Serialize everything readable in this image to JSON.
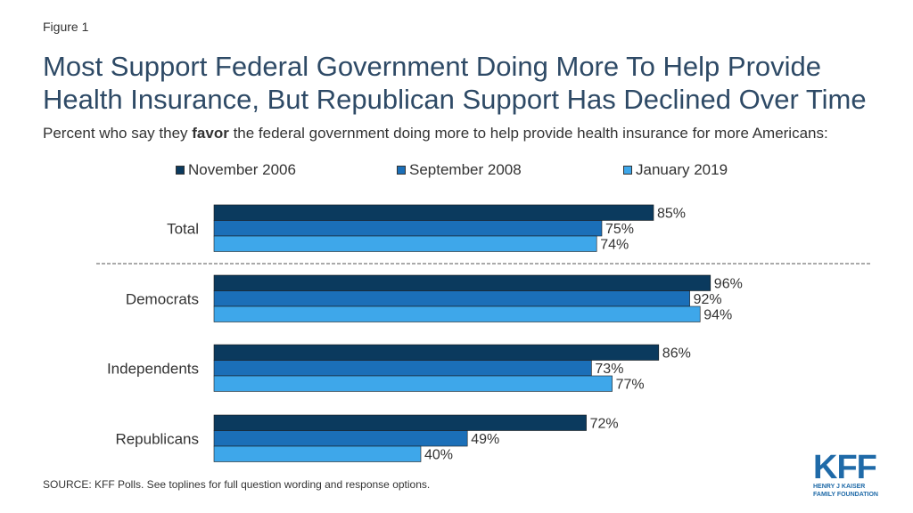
{
  "figure_label": "Figure 1",
  "title": "Most Support Federal Government Doing More To Help Provide Health Insurance, But Republican Support Has Declined Over Time",
  "subtitle": {
    "before": "Percent who say they ",
    "bold": "favor",
    "after": " the federal government doing more to help provide health insurance for more Americans:"
  },
  "source": "SOURCE: KFF Polls. See toplines for full question wording and response options.",
  "logo": {
    "mark": "KFF",
    "line1": "HENRY J KAISER",
    "line2": "FAMILY FOUNDATION"
  },
  "colors": {
    "nov2006": "#0b3a5e",
    "sep2008": "#1b6fb8",
    "jan2019": "#3ea7ea"
  },
  "chart_data": {
    "type": "bar",
    "orientation": "horizontal",
    "categories": [
      "Total",
      "Democrats",
      "Independents",
      "Republicans"
    ],
    "series": [
      {
        "name": "November 2006",
        "values": [
          85,
          96,
          86,
          72
        ],
        "color": "#0b3a5e"
      },
      {
        "name": "September 2008",
        "values": [
          75,
          92,
          73,
          49
        ],
        "color": "#1b6fb8"
      },
      {
        "name": "January 2019",
        "values": [
          74,
          94,
          77,
          40
        ],
        "color": "#3ea7ea"
      }
    ],
    "value_suffix": "%",
    "xlim": [
      0,
      100
    ],
    "legend": "top",
    "grid": false,
    "separator_after_category": "Total"
  }
}
